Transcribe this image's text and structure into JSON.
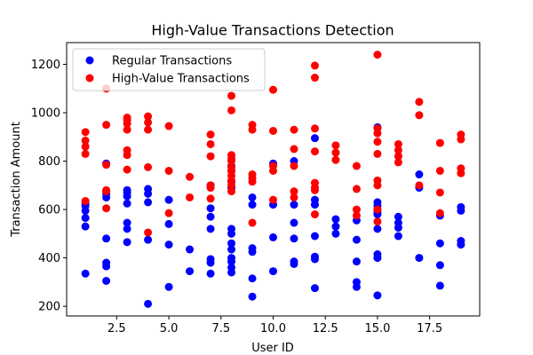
{
  "chart_data": {
    "type": "scatter",
    "title": "High-Value Transactions Detection",
    "xlabel": "User ID",
    "ylabel": "Transaction Amount",
    "xlim": [
      0.1,
      19.9
    ],
    "ylim": [
      160,
      1290
    ],
    "xticks": [
      2.5,
      5.0,
      7.5,
      10.0,
      12.5,
      15.0,
      17.5
    ],
    "yticks": [
      200,
      400,
      600,
      800,
      1000,
      1200
    ],
    "grid": false,
    "legend_position": "top-left",
    "series": [
      {
        "name": "Regular Transactions",
        "color": "#0000ff",
        "points": [
          [
            1,
            335
          ],
          [
            1,
            530
          ],
          [
            1,
            565
          ],
          [
            1,
            595
          ],
          [
            1,
            615
          ],
          [
            1,
            625
          ],
          [
            2,
            305
          ],
          [
            2,
            365
          ],
          [
            2,
            380
          ],
          [
            2,
            480
          ],
          [
            2,
            650
          ],
          [
            2,
            665
          ],
          [
            2,
            675
          ],
          [
            2,
            790
          ],
          [
            3,
            465
          ],
          [
            3,
            520
          ],
          [
            3,
            545
          ],
          [
            3,
            625
          ],
          [
            3,
            655
          ],
          [
            3,
            670
          ],
          [
            3,
            680
          ],
          [
            4,
            210
          ],
          [
            4,
            475
          ],
          [
            4,
            630
          ],
          [
            4,
            665
          ],
          [
            4,
            685
          ],
          [
            5,
            280
          ],
          [
            5,
            455
          ],
          [
            5,
            540
          ],
          [
            5,
            640
          ],
          [
            6,
            345
          ],
          [
            6,
            435
          ],
          [
            7,
            335
          ],
          [
            7,
            380
          ],
          [
            7,
            395
          ],
          [
            7,
            520
          ],
          [
            7,
            570
          ],
          [
            7,
            605
          ],
          [
            7,
            700
          ],
          [
            8,
            340
          ],
          [
            8,
            360
          ],
          [
            8,
            385
          ],
          [
            8,
            400
          ],
          [
            8,
            435
          ],
          [
            8,
            460
          ],
          [
            8,
            500
          ],
          [
            8,
            520
          ],
          [
            8,
            690
          ],
          [
            8,
            715
          ],
          [
            8,
            760
          ],
          [
            8,
            780
          ],
          [
            9,
            240
          ],
          [
            9,
            315
          ],
          [
            9,
            425
          ],
          [
            9,
            440
          ],
          [
            9,
            620
          ],
          [
            9,
            650
          ],
          [
            10,
            345
          ],
          [
            10,
            485
          ],
          [
            10,
            620
          ],
          [
            10,
            790
          ],
          [
            11,
            375
          ],
          [
            11,
            385
          ],
          [
            11,
            480
          ],
          [
            11,
            545
          ],
          [
            11,
            620
          ],
          [
            11,
            800
          ],
          [
            12,
            275
          ],
          [
            12,
            395
          ],
          [
            12,
            405
          ],
          [
            12,
            490
          ],
          [
            12,
            620
          ],
          [
            12,
            640
          ],
          [
            12,
            895
          ],
          [
            13,
            500
          ],
          [
            13,
            530
          ],
          [
            13,
            560
          ],
          [
            14,
            280
          ],
          [
            14,
            300
          ],
          [
            14,
            385
          ],
          [
            14,
            475
          ],
          [
            14,
            555
          ],
          [
            15,
            245
          ],
          [
            15,
            400
          ],
          [
            15,
            415
          ],
          [
            15,
            520
          ],
          [
            15,
            580
          ],
          [
            15,
            590
          ],
          [
            15,
            615
          ],
          [
            15,
            630
          ],
          [
            15,
            940
          ],
          [
            16,
            490
          ],
          [
            16,
            525
          ],
          [
            16,
            545
          ],
          [
            16,
            570
          ],
          [
            17,
            400
          ],
          [
            17,
            690
          ],
          [
            17,
            745
          ],
          [
            18,
            285
          ],
          [
            18,
            370
          ],
          [
            18,
            460
          ],
          [
            18,
            575
          ],
          [
            19,
            455
          ],
          [
            19,
            470
          ],
          [
            19,
            595
          ],
          [
            19,
            610
          ]
        ]
      },
      {
        "name": "High-Value Transactions",
        "color": "#ff0000",
        "points": [
          [
            1,
            635
          ],
          [
            1,
            830
          ],
          [
            1,
            860
          ],
          [
            1,
            885
          ],
          [
            1,
            920
          ],
          [
            2,
            605
          ],
          [
            2,
            675
          ],
          [
            2,
            680
          ],
          [
            2,
            785
          ],
          [
            2,
            950
          ],
          [
            2,
            1100
          ],
          [
            3,
            765
          ],
          [
            3,
            825
          ],
          [
            3,
            845
          ],
          [
            3,
            930
          ],
          [
            3,
            955
          ],
          [
            3,
            970
          ],
          [
            3,
            980
          ],
          [
            4,
            505
          ],
          [
            4,
            775
          ],
          [
            4,
            930
          ],
          [
            4,
            960
          ],
          [
            4,
            985
          ],
          [
            5,
            585
          ],
          [
            5,
            760
          ],
          [
            5,
            945
          ],
          [
            6,
            650
          ],
          [
            6,
            735
          ],
          [
            7,
            645
          ],
          [
            7,
            690
          ],
          [
            7,
            700
          ],
          [
            7,
            820
          ],
          [
            7,
            870
          ],
          [
            7,
            910
          ],
          [
            8,
            675
          ],
          [
            8,
            700
          ],
          [
            8,
            720
          ],
          [
            8,
            740
          ],
          [
            8,
            760
          ],
          [
            8,
            775
          ],
          [
            8,
            800
          ],
          [
            8,
            810
          ],
          [
            8,
            825
          ],
          [
            8,
            1010
          ],
          [
            8,
            1070
          ],
          [
            9,
            545
          ],
          [
            9,
            715
          ],
          [
            9,
            730
          ],
          [
            9,
            745
          ],
          [
            9,
            930
          ],
          [
            9,
            950
          ],
          [
            10,
            640
          ],
          [
            10,
            760
          ],
          [
            10,
            780
          ],
          [
            10,
            925
          ],
          [
            10,
            1095
          ],
          [
            11,
            650
          ],
          [
            11,
            675
          ],
          [
            11,
            780
          ],
          [
            11,
            850
          ],
          [
            11,
            930
          ],
          [
            12,
            580
          ],
          [
            12,
            680
          ],
          [
            12,
            690
          ],
          [
            12,
            710
          ],
          [
            12,
            840
          ],
          [
            12,
            935
          ],
          [
            12,
            1145
          ],
          [
            12,
            1195
          ],
          [
            13,
            805
          ],
          [
            13,
            835
          ],
          [
            13,
            865
          ],
          [
            14,
            575
          ],
          [
            14,
            600
          ],
          [
            14,
            685
          ],
          [
            14,
            780
          ],
          [
            15,
            550
          ],
          [
            15,
            600
          ],
          [
            15,
            700
          ],
          [
            15,
            720
          ],
          [
            15,
            830
          ],
          [
            15,
            880
          ],
          [
            15,
            915
          ],
          [
            15,
            935
          ],
          [
            15,
            1240
          ],
          [
            16,
            795
          ],
          [
            16,
            820
          ],
          [
            16,
            845
          ],
          [
            16,
            870
          ],
          [
            17,
            700
          ],
          [
            17,
            990
          ],
          [
            17,
            1045
          ],
          [
            18,
            585
          ],
          [
            18,
            670
          ],
          [
            18,
            760
          ],
          [
            18,
            875
          ],
          [
            19,
            750
          ],
          [
            19,
            770
          ],
          [
            19,
            890
          ],
          [
            19,
            910
          ]
        ]
      }
    ]
  }
}
